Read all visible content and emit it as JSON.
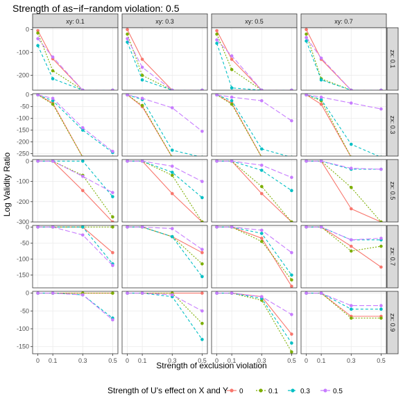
{
  "chart_data": {
    "type": "line",
    "title": "Strength of as−if−random violation: 0.5",
    "xlabel": "Strength of exclusion violation",
    "ylabel": "Log Validity Ratio",
    "x_categories": [
      "0",
      "0.1",
      "0.3",
      "0.5"
    ],
    "x_values": [
      0,
      0.1,
      0.3,
      0.5
    ],
    "col_facets": [
      "xy: 0.1",
      "xy: 0.3",
      "xy: 0.5",
      "xy: 0.7"
    ],
    "row_facets": [
      "zx: 0.1",
      "zx: 0.3",
      "zx: 0.5",
      "zx: 0.7",
      "zx: 0.9"
    ],
    "legend": {
      "title": "Strength of U's effect on X and Y",
      "position": "bottom",
      "entries": [
        "0",
        "0.1",
        "0.3",
        "0.5"
      ]
    },
    "series_styles": [
      {
        "name": "0",
        "color": "#F8766D",
        "dash": "solid"
      },
      {
        "name": "0.1",
        "color": "#7CAE00",
        "dash": "dotted"
      },
      {
        "name": "0.3",
        "color": "#00BFC4",
        "dash": "dashed"
      },
      {
        "name": "0.5",
        "color": "#C77CFF",
        "dash": "longdash"
      }
    ],
    "rows": [
      {
        "ylim": [
          -265,
          8
        ],
        "yticks": [
          0,
          -100,
          -200
        ],
        "panels": [
          [
            [
              -5,
              -128,
              -265,
              -265
            ],
            [
              -15,
              -180,
              -265,
              -265
            ],
            [
              -70,
              -215,
              -265,
              -265
            ],
            [
              -40,
              -120,
              -265,
              -265
            ]
          ],
          [
            [
              0,
              -130,
              -265,
              -265
            ],
            [
              -20,
              -200,
              -265,
              -265
            ],
            [
              -55,
              -220,
              -265,
              -265
            ],
            [
              -40,
              -165,
              -265,
              -265
            ]
          ],
          [
            [
              -5,
              -130,
              -265,
              -265
            ],
            [
              -20,
              -175,
              -265,
              -265
            ],
            [
              -60,
              -255,
              -265,
              -265
            ],
            [
              -45,
              -115,
              -265,
              -265
            ]
          ],
          [
            [
              0,
              -130,
              -265,
              -265
            ],
            [
              -20,
              -215,
              -265,
              -265
            ],
            [
              -50,
              -220,
              -265,
              -265
            ],
            [
              -35,
              -125,
              -265,
              -265
            ]
          ]
        ]
      },
      {
        "ylim": [
          -260,
          5
        ],
        "yticks": [
          0,
          -50,
          -100,
          -150,
          -200,
          -250
        ],
        "panels": [
          [
            [
              0,
              -35,
              -265,
              -265
            ],
            [
              0,
              -40,
              -265,
              -265
            ],
            [
              0,
              -25,
              -150,
              -245
            ],
            [
              0,
              -15,
              -140,
              -240
            ]
          ],
          [
            [
              0,
              -50,
              -265,
              -265
            ],
            [
              0,
              -45,
              -265,
              -265
            ],
            [
              0,
              -20,
              -235,
              -265
            ],
            [
              0,
              -15,
              -55,
              -155
            ]
          ],
          [
            [
              0,
              -35,
              -265,
              -265
            ],
            [
              0,
              -40,
              -265,
              -265
            ],
            [
              0,
              -25,
              -230,
              -265
            ],
            [
              0,
              -10,
              -25,
              -110
            ]
          ],
          [
            [
              0,
              -40,
              -265,
              -265
            ],
            [
              0,
              -25,
              -265,
              -265
            ],
            [
              0,
              -20,
              -210,
              -265
            ],
            [
              0,
              -10,
              -35,
              -60
            ]
          ]
        ]
      },
      {
        "ylim": [
          -300,
          8
        ],
        "yticks": [
          0,
          -100,
          -200,
          -300
        ],
        "panels": [
          [
            [
              0,
              0,
              -145,
              -300
            ],
            [
              0,
              0,
              -70,
              -275
            ],
            [
              0,
              0,
              0,
              -175
            ],
            [
              0,
              0,
              -75,
              -155
            ]
          ],
          [
            [
              0,
              0,
              -160,
              -300
            ],
            [
              0,
              0,
              -70,
              -300
            ],
            [
              0,
              0,
              -55,
              -180
            ],
            [
              0,
              0,
              -25,
              -100
            ]
          ],
          [
            [
              0,
              0,
              -160,
              -300
            ],
            [
              0,
              0,
              -125,
              -300
            ],
            [
              0,
              0,
              -45,
              -145
            ],
            [
              0,
              0,
              -20,
              -80
            ]
          ],
          [
            [
              0,
              0,
              -235,
              -300
            ],
            [
              0,
              0,
              -130,
              -300
            ],
            [
              0,
              0,
              -40,
              -40
            ],
            [
              0,
              0,
              -35,
              -40
            ]
          ]
        ]
      },
      {
        "ylim": [
          -190,
          5
        ],
        "yticks": [
          0,
          -50,
          -100,
          -150
        ],
        "panels": [
          [
            [
              0,
              0,
              0,
              -80
            ],
            [
              0,
              0,
              0,
              0
            ],
            [
              0,
              0,
              0,
              -115
            ],
            [
              0,
              0,
              -25,
              -120
            ]
          ],
          [
            [
              0,
              0,
              -30,
              -80
            ],
            [
              0,
              0,
              -30,
              -115
            ],
            [
              0,
              0,
              -30,
              -155
            ],
            [
              0,
              0,
              -5,
              -70
            ]
          ],
          [
            [
              0,
              0,
              -35,
              -185
            ],
            [
              0,
              0,
              -45,
              -165
            ],
            [
              0,
              0,
              -20,
              -150
            ],
            [
              0,
              0,
              -10,
              -80
            ]
          ],
          [
            [
              0,
              0,
              -60,
              -125
            ],
            [
              0,
              0,
              -75,
              -60
            ],
            [
              0,
              0,
              -40,
              -40
            ],
            [
              0,
              0,
              -40,
              -35
            ]
          ]
        ]
      },
      {
        "ylim": [
          -170,
          5
        ],
        "yticks": [
          0,
          -50,
          -100,
          -150
        ],
        "panels": [
          [
            [
              0,
              0,
              0,
              0
            ],
            [
              0,
              0,
              0,
              0
            ],
            [
              0,
              0,
              -5,
              -70
            ],
            [
              0,
              0,
              -5,
              -75
            ]
          ],
          [
            [
              0,
              0,
              0,
              0
            ],
            [
              0,
              0,
              0,
              -85
            ],
            [
              0,
              0,
              -10,
              -130
            ],
            [
              0,
              0,
              -5,
              -50
            ]
          ],
          [
            [
              0,
              0,
              -10,
              -115
            ],
            [
              0,
              0,
              -20,
              -165
            ],
            [
              0,
              0,
              -15,
              -140
            ],
            [
              0,
              0,
              -10,
              -60
            ]
          ],
          [
            [
              0,
              0,
              -65,
              -65
            ],
            [
              0,
              0,
              -70,
              -70
            ],
            [
              0,
              0,
              -45,
              -45
            ],
            [
              0,
              0,
              -35,
              -35
            ]
          ]
        ]
      }
    ]
  }
}
